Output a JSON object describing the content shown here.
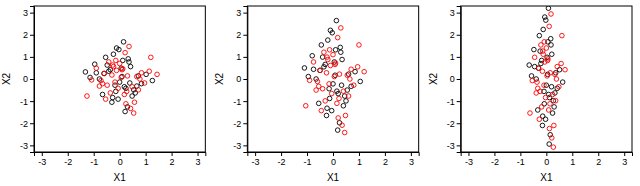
{
  "chart_data": [
    {
      "type": "scatter",
      "x_label": "X1",
      "y_label": "X2",
      "xlim": [
        -3.3,
        3.3
      ],
      "ylim": [
        -3.3,
        3.3
      ],
      "xticks": [
        -3,
        -2,
        -1,
        0,
        1,
        2,
        3
      ],
      "yticks": [
        -3,
        -2,
        -1,
        0,
        1,
        2,
        3
      ],
      "series": [
        {
          "color": "#000000",
          "marker": "circle",
          "x": [
            0.18,
            -0.48,
            0.72,
            -0.06,
            0.36,
            -0.9,
            0.54,
            -0.24,
            0,
            1.02,
            -0.66,
            0.3,
            -0.36,
            0.12,
            -0.18,
            0.6,
            -1.14,
            0.42,
            -0.12,
            0.24,
            -0.54,
            0.84,
            -0.3,
            0.06,
            -0.78,
            0.48,
            -0.42,
            1.26,
            -0.03,
            0.21,
            -0.6,
            0.33,
            -0.15,
            0.66,
            -0.96,
            0.09,
            -0.27,
            0.39,
            -1.32,
            0.15
          ],
          "values": [
            -0.35,
            0.63,
            0.14,
            -0.91,
            0.77,
            0.28,
            -0.49,
            1.12,
            -0.14,
            0.21,
            -0.7,
            -1.26,
            0.42,
            0.84,
            -0.28,
            -0.63,
            0.07,
            0.56,
            1.4,
            -0.42,
            0.98,
            -0.21,
            -1.05,
            0.49,
            0,
            -0.77,
            0.35,
            -0.07,
            1.33,
            -1.47,
            0.25,
            0.91,
            -0.56,
            -0.32,
            0.67,
            0.11,
            -0.84,
            -0.18,
            0.32,
            1.68
          ]
        },
        {
          "color": "#ff0000",
          "marker": "circle",
          "x": [
            1.44,
            0.27,
            -0.15,
            -0.72,
            0.09,
            0.57,
            -0.27,
            -0.48,
            0.78,
            0.21,
            -1.26,
            1.14,
            -0.06,
            0.3,
            -0.66,
            0,
            0.42,
            -0.9,
            -0.18,
            0.84,
            -0.36,
            1.2,
            0.48,
            0.06,
            -0.54,
            -0.24,
            0.72,
            0.36,
            -1.08,
            -0.6,
            0.18,
            -0.12,
            0.96,
            -0.42,
            0.24,
            0.66,
            -0.78,
            0.12,
            0.54,
            -0.3
          ],
          "values": [
            0.21,
            -0.56,
            0.84,
            -0.07,
            0.42,
            -1.05,
            0.63,
            -0.28,
            0,
            1.19,
            -0.77,
            0.35,
            -0.42,
            0.14,
            -0.21,
            0.7,
            -1.33,
            0.49,
            -0.14,
            0.28,
            -0.63,
            0.98,
            -0.35,
            0.07,
            -0.91,
            0.56,
            -0.49,
            1.47,
            -0.04,
            0.25,
            -0.7,
            0.39,
            -0.18,
            0.77,
            -1.12,
            0.11,
            -0.32,
            0.46,
            -1.54,
            0.18
          ]
        }
      ]
    },
    {
      "type": "scatter",
      "x_label": "X1",
      "y_label": "X2",
      "xlim": [
        -3.3,
        3.3
      ],
      "ylim": [
        -3.3,
        3.3
      ],
      "xticks": [
        -3,
        -2,
        -1,
        0,
        1,
        2,
        3
      ],
      "yticks": [
        -3,
        -2,
        -1,
        0,
        1,
        2,
        3
      ],
      "series": [
        {
          "color": "#000000",
          "marker": "circle",
          "x": [
            0.15,
            -0.4,
            0.6,
            -0.05,
            0.3,
            -0.75,
            0.45,
            -0.2,
            0,
            0.85,
            -0.55,
            0.25,
            -0.3,
            0.1,
            -0.15,
            0.5,
            -0.95,
            0.35,
            -0.1,
            0.2,
            -0.45,
            0.7,
            -0.25,
            0.05,
            -0.65,
            0.4,
            -0.35,
            1.05,
            -0.03,
            0.18,
            -0.5,
            0.28,
            -0.13,
            0.55,
            -0.8,
            0.08,
            -0.23,
            0.33,
            -1.1,
            0.13
          ],
          "values": [
            -0.55,
            0.99,
            0.22,
            -1.43,
            1.21,
            0.44,
            -0.77,
            1.76,
            -0.22,
            0.33,
            -1.1,
            -1.98,
            0.66,
            1.32,
            -0.44,
            -0.99,
            0.11,
            0.88,
            2.2,
            -0.66,
            1.54,
            -0.33,
            -1.65,
            0.77,
            0,
            -1.21,
            0.55,
            -0.11,
            2.09,
            -2.31,
            0.39,
            1.43,
            -0.88,
            -0.5,
            1.05,
            0.17,
            -1.32,
            -0.28,
            0.5,
            2.64
          ]
        },
        {
          "color": "#ff0000",
          "marker": "circle",
          "x": [
            1.2,
            0.23,
            -0.13,
            -0.6,
            0.08,
            0.48,
            -0.23,
            -0.4,
            0.65,
            0.18,
            -1.05,
            0.95,
            -0.05,
            0.25,
            -0.55,
            0,
            0.35,
            -0.75,
            -0.15,
            0.7,
            -0.3,
            1.0,
            0.4,
            0.05,
            -0.45,
            -0.2,
            0.6,
            0.3,
            -0.9,
            -0.5,
            0.15,
            -0.1,
            0.8,
            -0.35,
            0.2,
            0.55,
            -0.65,
            0.1,
            0.45,
            -0.25
          ],
          "values": [
            0.33,
            -0.88,
            1.32,
            -0.11,
            0.66,
            -1.65,
            0.99,
            -0.44,
            0,
            1.87,
            -1.21,
            0.55,
            -0.66,
            0.22,
            -0.33,
            1.1,
            -2.09,
            0.77,
            -0.22,
            0.44,
            -0.99,
            1.54,
            -0.55,
            0.11,
            -1.43,
            0.88,
            -0.77,
            2.31,
            -0.06,
            0.39,
            -1.1,
            0.61,
            -0.28,
            1.21,
            -1.76,
            0.17,
            -0.5,
            0.72,
            -2.42,
            0.28
          ]
        }
      ]
    },
    {
      "type": "scatter",
      "x_label": "X1",
      "y_label": "X2",
      "xlim": [
        -3.3,
        3.3
      ],
      "ylim": [
        -3.3,
        3.3
      ],
      "xticks": [
        -3,
        -2,
        -1,
        0,
        1,
        2,
        3
      ],
      "yticks": [
        -3,
        -2,
        -1,
        0,
        1,
        2,
        3
      ],
      "series": [
        {
          "color": "#000000",
          "marker": "circle",
          "x": [
            0.09,
            -0.24,
            0.36,
            -0.03,
            0.18,
            -0.45,
            0.27,
            -0.12,
            0,
            0.51,
            -0.33,
            0.15,
            -0.18,
            0.06,
            -0.09,
            0.3,
            -0.57,
            0.21,
            -0.06,
            0.12,
            -0.27,
            0.42,
            -0.15,
            0.03,
            -0.39,
            0.24,
            -0.21,
            0.63,
            -0.02,
            0.11,
            -0.3,
            0.17,
            -0.08,
            0.33,
            -0.48,
            0.05,
            -0.14,
            0.2,
            -0.66,
            0.08
          ],
          "values": [
            -0.7,
            1.26,
            0.28,
            -1.82,
            1.54,
            0.56,
            -0.98,
            2.24,
            -0.28,
            0.42,
            -1.4,
            -2.52,
            0.84,
            1.68,
            -0.56,
            -1.26,
            0.14,
            1.12,
            2.8,
            -0.84,
            1.96,
            -0.42,
            -2.1,
            0.98,
            0,
            -1.54,
            0.7,
            -0.14,
            2.66,
            -2.94,
            0.49,
            1.82,
            -1.12,
            -0.63,
            1.33,
            0.21,
            -1.68,
            -0.35,
            0.63,
            3.2
          ]
        },
        {
          "color": "#ff0000",
          "marker": "circle",
          "x": [
            0.72,
            0.14,
            -0.08,
            -0.36,
            0.05,
            0.29,
            -0.14,
            -0.24,
            0.39,
            0.11,
            -0.63,
            0.57,
            -0.03,
            0.15,
            -0.33,
            0,
            0.21,
            -0.45,
            -0.09,
            0.42,
            -0.18,
            0.6,
            0.24,
            0.03,
            -0.27,
            -0.12,
            0.36,
            0.18,
            -0.54,
            -0.3,
            0.09,
            -0.06,
            0.48,
            -0.21,
            0.12,
            0.33,
            -0.39,
            0.06,
            0.27,
            -0.15
          ],
          "values": [
            0.42,
            -1.12,
            1.68,
            -0.14,
            0.84,
            -2.1,
            1.26,
            -0.56,
            0,
            2.38,
            -1.54,
            0.7,
            -0.84,
            0.28,
            -0.42,
            1.4,
            -2.66,
            0.98,
            -0.28,
            0.56,
            -1.26,
            1.96,
            -0.7,
            0.14,
            -1.82,
            1.12,
            -0.98,
            2.94,
            -0.07,
            0.49,
            -1.4,
            0.77,
            -0.35,
            1.54,
            -2.24,
            0.21,
            -0.63,
            0.91,
            -3.08,
            0.35
          ]
        }
      ]
    }
  ]
}
